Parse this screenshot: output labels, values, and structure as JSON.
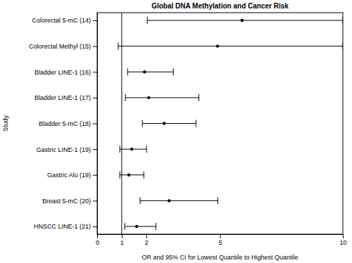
{
  "chart_data": {
    "type": "forest",
    "title": "Global DNA Methylation and Cancer Risk",
    "x_label": "OR and 95% CI for Lowest Quantile to Highest Quantile",
    "y_label": "Study",
    "categories": [
      "Colorectal 5-mC (14)",
      "Colorectal Methyl (15)",
      "Bladder LINE-1 (16)",
      "Bladder LINE-1 (17)",
      "Bladder 5-mC (18)",
      "Gastric LINE-1 (19)",
      "Gastric Alu (19)",
      "Breast 5-mC (20)",
      "HNSCC LINE-1 (21)"
    ],
    "values": [
      5.9,
      4.9,
      1.93,
      2.1,
      2.73,
      1.41,
      1.29,
      2.93,
      1.61
    ],
    "lower": [
      2.04,
      0.86,
      1.24,
      1.15,
      1.84,
      0.92,
      0.92,
      1.75,
      1.12
    ],
    "upper": [
      10,
      10,
      3.1,
      4.14,
      4.02,
      2.01,
      1.9,
      4.91,
      2.39
    ],
    "reference_line": 1,
    "xlim": [
      0,
      10
    ],
    "xticks": [
      0,
      1,
      2,
      5,
      10
    ],
    "color": "#000000",
    "marker": "circle"
  }
}
